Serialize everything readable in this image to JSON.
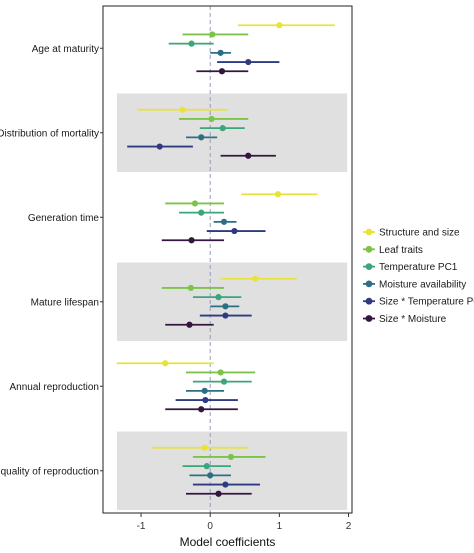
{
  "chart_data": {
    "type": "forest",
    "xlabel": "Model coefficients",
    "xlim": [
      -1.55,
      2.05
    ],
    "x_ticks": [
      "-1",
      "0",
      "1",
      "2"
    ],
    "x_tick_values": [
      -1,
      0,
      1,
      2
    ],
    "reference_line": 0,
    "shaded_categories": [
      "Distribution of mortality",
      "Mature lifespan",
      "Inequality of reproduction"
    ],
    "shade_color": "#e0e0e0",
    "legend_position": "right",
    "series": [
      {
        "name": "Structure and size",
        "color": "#e8e33a"
      },
      {
        "name": "Leaf traits",
        "color": "#7cc449"
      },
      {
        "name": "Temperature PC1",
        "color": "#3aa67a"
      },
      {
        "name": "Moisture availability",
        "color": "#2c6f85"
      },
      {
        "name": "Size * Temperature PC1",
        "color": "#2e3b80"
      },
      {
        "name": "Size * Moisture",
        "color": "#33153f"
      }
    ],
    "categories": [
      {
        "name": "Age at maturity",
        "estimates": [
          {
            "series": 0,
            "est": 1.0,
            "lo": 0.4,
            "hi": 1.8
          },
          {
            "series": 1,
            "est": 0.03,
            "lo": -0.4,
            "hi": 0.55
          },
          {
            "series": 2,
            "est": -0.27,
            "lo": -0.6,
            "hi": 0.05
          },
          {
            "series": 3,
            "est": 0.15,
            "lo": 0.0,
            "hi": 0.3
          },
          {
            "series": 4,
            "est": 0.55,
            "lo": 0.1,
            "hi": 1.0
          },
          {
            "series": 5,
            "est": 0.17,
            "lo": -0.2,
            "hi": 0.55
          }
        ]
      },
      {
        "name": "Distribution of mortality",
        "estimates": [
          {
            "series": 0,
            "est": -0.4,
            "lo": -1.05,
            "hi": 0.25
          },
          {
            "series": 1,
            "est": 0.02,
            "lo": -0.45,
            "hi": 0.55
          },
          {
            "series": 2,
            "est": 0.18,
            "lo": -0.15,
            "hi": 0.5
          },
          {
            "series": 3,
            "est": -0.13,
            "lo": -0.35,
            "hi": 0.1
          },
          {
            "series": 4,
            "est": -0.73,
            "lo": -1.2,
            "hi": -0.25
          },
          {
            "series": 5,
            "est": 0.55,
            "lo": 0.15,
            "hi": 0.95
          }
        ]
      },
      {
        "name": "Generation time",
        "estimates": [
          {
            "series": 0,
            "est": 0.98,
            "lo": 0.45,
            "hi": 1.55
          },
          {
            "series": 1,
            "est": -0.22,
            "lo": -0.65,
            "hi": 0.2
          },
          {
            "series": 2,
            "est": -0.13,
            "lo": -0.45,
            "hi": 0.2
          },
          {
            "series": 3,
            "est": 0.2,
            "lo": 0.05,
            "hi": 0.38
          },
          {
            "series": 4,
            "est": 0.35,
            "lo": -0.05,
            "hi": 0.8
          },
          {
            "series": 5,
            "est": -0.27,
            "lo": -0.7,
            "hi": 0.2
          }
        ]
      },
      {
        "name": "Mature lifespan",
        "estimates": [
          {
            "series": 0,
            "est": 0.65,
            "lo": 0.15,
            "hi": 1.25
          },
          {
            "series": 1,
            "est": -0.28,
            "lo": -0.7,
            "hi": 0.2
          },
          {
            "series": 2,
            "est": 0.12,
            "lo": -0.25,
            "hi": 0.45
          },
          {
            "series": 3,
            "est": 0.22,
            "lo": 0.0,
            "hi": 0.42
          },
          {
            "series": 4,
            "est": 0.22,
            "lo": -0.15,
            "hi": 0.6
          },
          {
            "series": 5,
            "est": -0.3,
            "lo": -0.65,
            "hi": 0.05
          }
        ]
      },
      {
        "name": "Annual reproduction",
        "estimates": [
          {
            "series": 0,
            "est": -0.65,
            "lo": -1.35,
            "hi": 0.05
          },
          {
            "series": 1,
            "est": 0.15,
            "lo": -0.35,
            "hi": 0.65
          },
          {
            "series": 2,
            "est": 0.2,
            "lo": -0.25,
            "hi": 0.6
          },
          {
            "series": 3,
            "est": -0.08,
            "lo": -0.35,
            "hi": 0.2
          },
          {
            "series": 4,
            "est": -0.07,
            "lo": -0.5,
            "hi": 0.4
          },
          {
            "series": 5,
            "est": -0.13,
            "lo": -0.65,
            "hi": 0.4
          }
        ]
      },
      {
        "name": "Inequality of reproduction",
        "estimates": [
          {
            "series": 0,
            "est": -0.08,
            "lo": -0.85,
            "hi": 0.55
          },
          {
            "series": 1,
            "est": 0.3,
            "lo": -0.25,
            "hi": 0.8
          },
          {
            "series": 2,
            "est": -0.05,
            "lo": -0.4,
            "hi": 0.3
          },
          {
            "series": 3,
            "est": 0.0,
            "lo": -0.3,
            "hi": 0.3
          },
          {
            "series": 4,
            "est": 0.22,
            "lo": -0.25,
            "hi": 0.72
          },
          {
            "series": 5,
            "est": 0.12,
            "lo": -0.35,
            "hi": 0.6
          }
        ]
      }
    ]
  }
}
